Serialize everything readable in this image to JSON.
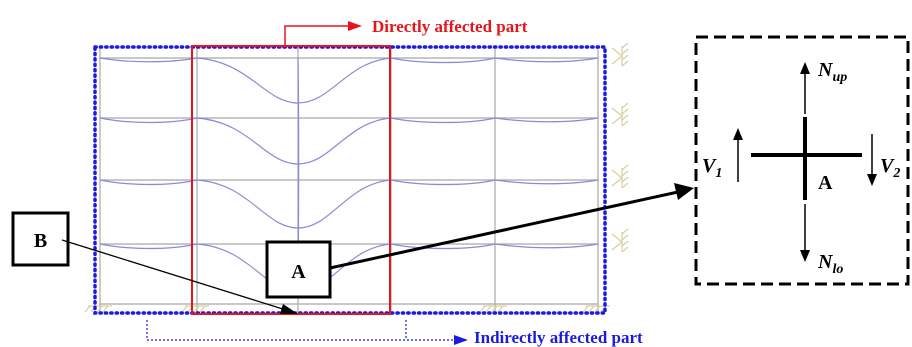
{
  "labels": {
    "directly_affected": "Directly affected part",
    "indirectly_affected": "Indirectly affected part",
    "box_b": "B",
    "box_a": "A",
    "detail_a": "A"
  },
  "forces": {
    "n_up": {
      "main": "N",
      "sub": "up"
    },
    "n_lo": {
      "main": "N",
      "sub": "lo"
    },
    "v1": {
      "main": "V",
      "sub": "1"
    },
    "v2": {
      "main": "V",
      "sub": "2"
    }
  },
  "colors": {
    "directly_affected": "#e8141c",
    "indirectly_affected": "#1a1ae0",
    "frame": "#a8a8a8",
    "deflection": "#8a8ad8",
    "support": "#d8d0a0",
    "ink": "#000000"
  }
}
